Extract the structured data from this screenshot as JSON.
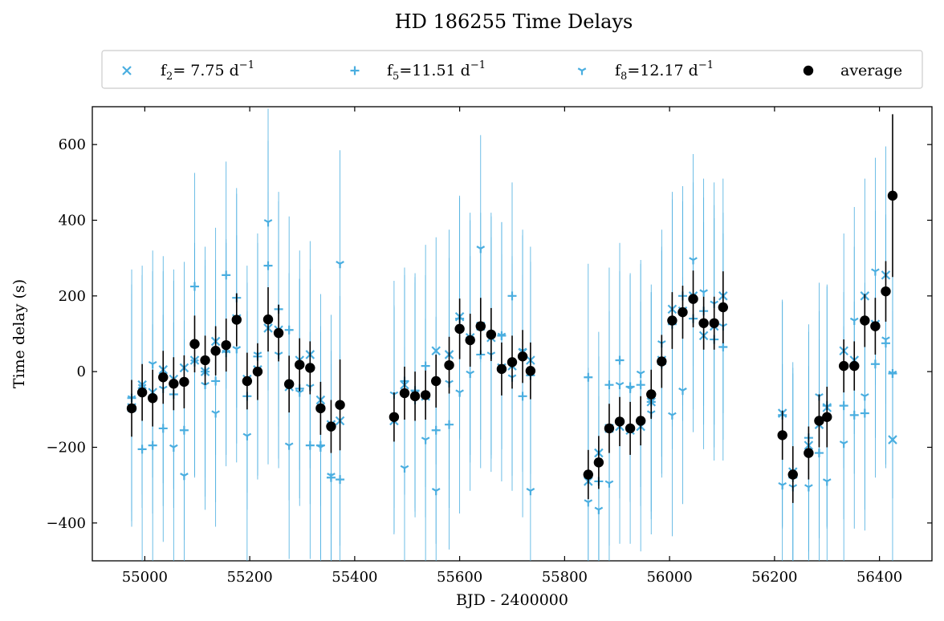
{
  "chart_data": {
    "type": "scatter",
    "title": "HD 186255 Time Delays",
    "xlabel": "BJD - 2400000",
    "ylabel": "Time delay (s)",
    "xlim": [
      54900,
      56500
    ],
    "ylim": [
      -500,
      700
    ],
    "xticks": [
      55000,
      55200,
      55400,
      55600,
      55800,
      56000,
      56200,
      56400
    ],
    "yticks": [
      -400,
      -200,
      0,
      200,
      400,
      600
    ],
    "ytick_labels": [
      "−400",
      "−200",
      "0",
      "200",
      "400",
      "600"
    ],
    "grid": false,
    "legend_placement": "top, above plot",
    "legend": [
      {
        "label_main": "f",
        "label_sub": "2",
        "label_rest": "=  7.75 d",
        "label_sup": "−1",
        "marker": "x"
      },
      {
        "label_main": "f",
        "label_sub": "5",
        "label_rest": "=11.51 d",
        "label_sup": "−1",
        "marker": "+"
      },
      {
        "label_main": "f",
        "label_sub": "8",
        "label_rest": "=12.17 d",
        "label_sup": "−1",
        "marker": "tri"
      },
      {
        "label_main": "average",
        "label_sub": "",
        "label_rest": "",
        "label_sup": "",
        "marker": "dot"
      }
    ],
    "colors": {
      "individual": "#4aaee0",
      "average": "#000000"
    },
    "average": {
      "name": "average",
      "x": [
        54975,
        54995,
        55015,
        55035,
        55055,
        55075,
        55095,
        55115,
        55135,
        55155,
        55175,
        55195,
        55215,
        55235,
        55255,
        55275,
        55295,
        55315,
        55335,
        55355,
        55372,
        55475,
        55495,
        55515,
        55535,
        55555,
        55580,
        55600,
        55620,
        55640,
        55660,
        55680,
        55700,
        55720,
        55735,
        55845,
        55865,
        55885,
        55905,
        55925,
        55945,
        55965,
        55985,
        56005,
        56025,
        56045,
        56065,
        56085,
        56102,
        56215,
        56235,
        56265,
        56285,
        56300,
        56332,
        56352,
        56372,
        56392,
        56412,
        56425
      ],
      "y": [
        -97,
        -55,
        -70,
        -15,
        -32,
        -27,
        73,
        30,
        55,
        70,
        137,
        -25,
        0,
        138,
        102,
        -33,
        18,
        10,
        -97,
        -145,
        -88,
        -120,
        -57,
        -65,
        -62,
        -25,
        17,
        113,
        83,
        120,
        98,
        7,
        25,
        40,
        2,
        -272,
        -240,
        -150,
        -132,
        -150,
        -130,
        -60,
        27,
        135,
        157,
        192,
        128,
        128,
        170,
        -168,
        -272,
        -215,
        -130,
        -120,
        15,
        15,
        135,
        120,
        212,
        465
      ],
      "yerr": [
        75,
        75,
        75,
        70,
        70,
        70,
        75,
        65,
        65,
        70,
        70,
        75,
        75,
        85,
        75,
        75,
        70,
        70,
        70,
        70,
        120,
        65,
        70,
        65,
        65,
        70,
        75,
        80,
        70,
        75,
        70,
        70,
        70,
        70,
        75,
        65,
        70,
        65,
        65,
        70,
        65,
        65,
        70,
        75,
        70,
        75,
        70,
        70,
        95,
        65,
        75,
        70,
        70,
        80,
        70,
        65,
        70,
        75,
        80,
        215
      ]
    },
    "series": [
      {
        "name": "f2",
        "marker": "x",
        "x": [
          54975,
          54995,
          55015,
          55035,
          55055,
          55075,
          55095,
          55115,
          55135,
          55155,
          55175,
          55195,
          55215,
          55235,
          55255,
          55275,
          55295,
          55315,
          55335,
          55355,
          55372,
          55475,
          55495,
          55515,
          55535,
          55555,
          55580,
          55600,
          55620,
          55640,
          55660,
          55680,
          55700,
          55720,
          55735,
          55845,
          55865,
          55885,
          55905,
          55925,
          55945,
          55965,
          55985,
          56005,
          56025,
          56045,
          56065,
          56085,
          56102,
          56215,
          56235,
          56265,
          56285,
          56300,
          56332,
          56352,
          56372,
          56392,
          56412,
          56425
        ],
        "y": [
          -95,
          -35,
          -55,
          5,
          -20,
          10,
          30,
          0,
          80,
          60,
          140,
          -20,
          5,
          115,
          110,
          -40,
          30,
          45,
          -75,
          -140,
          -130,
          -130,
          -35,
          -60,
          -65,
          55,
          45,
          145,
          90,
          120,
          90,
          10,
          15,
          50,
          30,
          -290,
          -215,
          -150,
          -145,
          -155,
          -145,
          -80,
          30,
          165,
          160,
          200,
          95,
          120,
          200,
          -110,
          -265,
          -195,
          -140,
          -95,
          55,
          30,
          200,
          125,
          255,
          -180
        ],
        "yerr": [
          300,
          290,
          320,
          300,
          290,
          280,
          310,
          330,
          300,
          280,
          330,
          300,
          290,
          360,
          340,
          300,
          290,
          300,
          280,
          290,
          330,
          300,
          290,
          310,
          320,
          300,
          330,
          320,
          310,
          300,
          320,
          300,
          290,
          310,
          300,
          300,
          320,
          310,
          310,
          300,
          330,
          290,
          300,
          310,
          290,
          300,
          300,
          320,
          310,
          300,
          290,
          300,
          300,
          320,
          310,
          300,
          310,
          300,
          340,
          340
        ]
      },
      {
        "name": "f5",
        "marker": "+",
        "x": [
          54975,
          54995,
          55015,
          55035,
          55055,
          55075,
          55095,
          55115,
          55135,
          55155,
          55175,
          55195,
          55215,
          55235,
          55255,
          55275,
          55295,
          55315,
          55335,
          55355,
          55372,
          55475,
          55495,
          55515,
          55535,
          55555,
          55580,
          55600,
          55620,
          55640,
          55660,
          55680,
          55700,
          55720,
          55735,
          55845,
          55865,
          55885,
          55905,
          55925,
          55945,
          55965,
          55985,
          56005,
          56025,
          56045,
          56065,
          56085,
          56102,
          56215,
          56235,
          56265,
          56285,
          56300,
          56332,
          56352,
          56372,
          56392,
          56412,
          56425
        ],
        "y": [
          -70,
          -205,
          -195,
          -150,
          -60,
          -155,
          225,
          0,
          -25,
          255,
          195,
          -65,
          40,
          280,
          165,
          110,
          -45,
          -195,
          -195,
          -280,
          -285,
          -125,
          -25,
          -50,
          15,
          -155,
          -140,
          140,
          90,
          45,
          100,
          95,
          200,
          -65,
          -10,
          -15,
          -290,
          -35,
          30,
          -40,
          -35,
          -80,
          20,
          125,
          200,
          140,
          160,
          85,
          65,
          -115,
          -280,
          -175,
          -215,
          -90,
          -90,
          -115,
          -110,
          20,
          75,
          -5
        ],
        "yerr": [
          300,
          310,
          320,
          300,
          300,
          290,
          300,
          280,
          320,
          300,
          290,
          300,
          300,
          330,
          310,
          300,
          290,
          300,
          300,
          300,
          330,
          300,
          300,
          310,
          320,
          300,
          330,
          320,
          330,
          300,
          320,
          300,
          300,
          320,
          300,
          300,
          330,
          310,
          310,
          300,
          320,
          310,
          300,
          330,
          290,
          300,
          300,
          320,
          300,
          300,
          290,
          300,
          300,
          320,
          300,
          300,
          310,
          300,
          330,
          330
        ]
      },
      {
        "name": "f8",
        "marker": "tri",
        "x": [
          54975,
          54995,
          55015,
          55035,
          55055,
          55075,
          55095,
          55115,
          55135,
          55155,
          55175,
          55195,
          55215,
          55235,
          55255,
          55275,
          55295,
          55315,
          55335,
          55355,
          55372,
          55475,
          55495,
          55515,
          55535,
          55555,
          55580,
          55600,
          55620,
          55640,
          55660,
          55680,
          55700,
          55720,
          55735,
          55845,
          55865,
          55885,
          55905,
          55925,
          55945,
          55965,
          55985,
          56005,
          56025,
          56045,
          56065,
          56085,
          56102,
          56215,
          56235,
          56265,
          56285,
          56300,
          56332,
          56352,
          56372,
          56392,
          56412,
          56425
        ],
        "y": [
          -70,
          -40,
          20,
          -45,
          -200,
          -275,
          25,
          -35,
          -110,
          50,
          60,
          -170,
          45,
          395,
          45,
          -195,
          -55,
          -40,
          -200,
          -275,
          285,
          -60,
          -255,
          -75,
          -180,
          -315,
          -30,
          -55,
          -5,
          325,
          45,
          95,
          -15,
          55,
          -315,
          -345,
          -365,
          -295,
          -35,
          -45,
          -5,
          -110,
          75,
          -115,
          -50,
          295,
          210,
          180,
          120,
          -300,
          -305,
          -305,
          -65,
          -290,
          -190,
          135,
          -65,
          265,
          85,
          -5
        ],
        "yerr": [
          340,
          320,
          300,
          310,
          330,
          360,
          300,
          330,
          300,
          300,
          300,
          330,
          320,
          300,
          300,
          300,
          300,
          310,
          320,
          330,
          300,
          300,
          320,
          310,
          320,
          320,
          330,
          320,
          310,
          300,
          310,
          300,
          300,
          320,
          320,
          330,
          300,
          320,
          300,
          300,
          300,
          320,
          300,
          320,
          300,
          280,
          300,
          320,
          300,
          320,
          300,
          320,
          300,
          320,
          310,
          300,
          300,
          300,
          330,
          330
        ]
      }
    ]
  }
}
